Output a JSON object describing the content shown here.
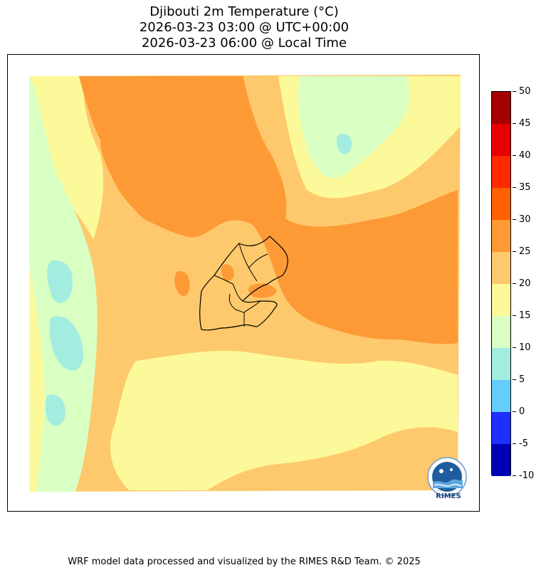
{
  "title": {
    "line1": "Djibouti 2m Temperature (°C)",
    "line2": "2026-03-23 03:00 @ UTC+00:00",
    "line3": "2026-03-23 06:00 @ Local Time"
  },
  "colorbar": {
    "ticks": [
      "50",
      "45",
      "40",
      "35",
      "30",
      "25",
      "20",
      "15",
      "10",
      "5",
      "0",
      "-5",
      "-10"
    ],
    "levels": [
      {
        "range": "45-50",
        "color": "#a50000"
      },
      {
        "range": "40-45",
        "color": "#e60000"
      },
      {
        "range": "35-40",
        "color": "#ff2a00"
      },
      {
        "range": "30-35",
        "color": "#ff6000"
      },
      {
        "range": "25-30",
        "color": "#fd9a36"
      },
      {
        "range": "20-25",
        "color": "#fdc96c"
      },
      {
        "range": "15-20",
        "color": "#fcf99a"
      },
      {
        "range": "10-15",
        "color": "#d9ffc3"
      },
      {
        "range": "5-10",
        "color": "#a3ece0"
      },
      {
        "range": "0-5",
        "color": "#64cdfd"
      },
      {
        "range": "-5-0",
        "color": "#1e2fff"
      },
      {
        "range": "-10--5",
        "color": "#0000b5"
      }
    ]
  },
  "logo": {
    "label": "RIMES"
  },
  "footer": {
    "credit": "WRF model data processed and visualized by the RIMES R&D Team. © 2025"
  }
}
